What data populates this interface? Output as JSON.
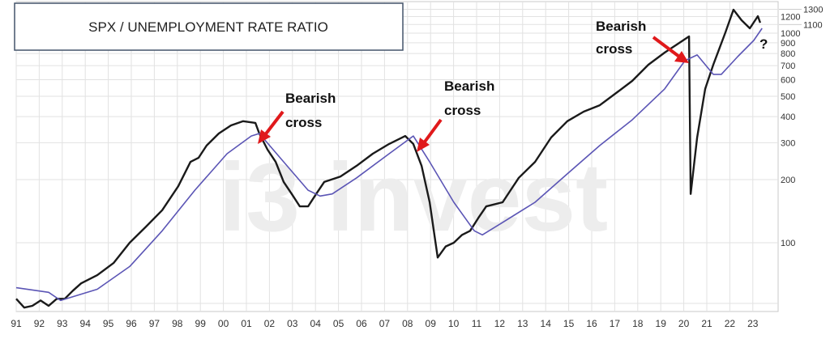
{
  "chart_data": {
    "type": "line",
    "title": "SPX / UNEMPLOYMENT RATE RATIO",
    "xlabel": "",
    "ylabel": "",
    "y_scale": "log",
    "ylim": [
      47,
      1400
    ],
    "xlim": [
      1991,
      2024.1
    ],
    "grid": true,
    "y_axis_side": "right",
    "x_tick_labels": [
      "91",
      "92",
      "93",
      "94",
      "95",
      "96",
      "97",
      "98",
      "99",
      "00",
      "01",
      "02",
      "03",
      "04",
      "05",
      "06",
      "07",
      "08",
      "09",
      "10",
      "11",
      "12",
      "13",
      "14",
      "15",
      "16",
      "17",
      "18",
      "19",
      "20",
      "21",
      "22",
      "23"
    ],
    "y_ticks": [
      100,
      200,
      300,
      400,
      500,
      600,
      700,
      800,
      900,
      1000,
      1100,
      1200,
      1300
    ],
    "series": [
      {
        "color": "#1a1a1a",
        "points": [
          [
            1991.0,
            54
          ],
          [
            1991.35,
            49
          ],
          [
            1991.7,
            50
          ],
          [
            1992.06,
            53
          ],
          [
            1992.41,
            50
          ],
          [
            1992.76,
            54
          ],
          [
            1993.11,
            54
          ],
          [
            1993.46,
            59
          ],
          [
            1993.82,
            64
          ],
          [
            1994.52,
            70
          ],
          [
            1995.23,
            80
          ],
          [
            1995.93,
            100
          ],
          [
            1996.63,
            119
          ],
          [
            1997.34,
            143
          ],
          [
            1998.04,
            186
          ],
          [
            1998.57,
            243
          ],
          [
            1998.92,
            254
          ],
          [
            1999.27,
            291
          ],
          [
            1999.8,
            332
          ],
          [
            2000.33,
            363
          ],
          [
            2000.86,
            380
          ],
          [
            2001.39,
            373
          ],
          [
            2001.56,
            332
          ],
          [
            2001.92,
            278
          ],
          [
            2002.27,
            243
          ],
          [
            2002.62,
            195
          ],
          [
            2002.97,
            171
          ],
          [
            2003.32,
            149
          ],
          [
            2003.68,
            149
          ],
          [
            2004.03,
            171
          ],
          [
            2004.38,
            195
          ],
          [
            2005.08,
            207
          ],
          [
            2005.79,
            233
          ],
          [
            2006.49,
            266
          ],
          [
            2007.2,
            296
          ],
          [
            2007.9,
            323
          ],
          [
            2008.25,
            296
          ],
          [
            2008.61,
            233
          ],
          [
            2008.96,
            156
          ],
          [
            2009.31,
            85
          ],
          [
            2009.66,
            96
          ],
          [
            2010.01,
            100
          ],
          [
            2010.37,
            109
          ],
          [
            2010.72,
            114
          ],
          [
            2011.07,
            131
          ],
          [
            2011.42,
            149
          ],
          [
            2012.13,
            156
          ],
          [
            2012.83,
            204
          ],
          [
            2013.54,
            243
          ],
          [
            2014.24,
            318
          ],
          [
            2014.94,
            380
          ],
          [
            2015.65,
            422
          ],
          [
            2016.35,
            453
          ],
          [
            2017.06,
            518
          ],
          [
            2017.76,
            592
          ],
          [
            2018.46,
            707
          ],
          [
            2019.17,
            808
          ],
          [
            2019.7,
            883
          ],
          [
            2020.23,
            965
          ],
          [
            2020.3,
            171
          ],
          [
            2020.58,
            318
          ],
          [
            2020.93,
            542
          ],
          [
            2021.28,
            707
          ],
          [
            2021.81,
            1009
          ],
          [
            2022.16,
            1294
          ],
          [
            2022.51,
            1153
          ],
          [
            2022.87,
            1055
          ],
          [
            2023.22,
            1205
          ],
          [
            2023.32,
            1122
          ]
        ]
      },
      {
        "color": "#5b55b5",
        "points": [
          [
            1991.0,
            61
          ],
          [
            1992.41,
            58
          ],
          [
            1992.93,
            53
          ],
          [
            1994.52,
            60
          ],
          [
            1995.93,
            77
          ],
          [
            1997.34,
            114
          ],
          [
            1998.76,
            178
          ],
          [
            2000.16,
            266
          ],
          [
            2001.21,
            323
          ],
          [
            2001.56,
            332
          ],
          [
            2002.62,
            243
          ],
          [
            2003.68,
            178
          ],
          [
            2004.2,
            167
          ],
          [
            2004.73,
            171
          ],
          [
            2005.79,
            204
          ],
          [
            2007.2,
            266
          ],
          [
            2008.25,
            323
          ],
          [
            2008.96,
            243
          ],
          [
            2010.01,
            156
          ],
          [
            2010.9,
            114
          ],
          [
            2011.25,
            109
          ],
          [
            2012.13,
            125
          ],
          [
            2013.54,
            156
          ],
          [
            2014.94,
            213
          ],
          [
            2016.35,
            291
          ],
          [
            2017.76,
            386
          ],
          [
            2019.17,
            542
          ],
          [
            2020.05,
            739
          ],
          [
            2020.58,
            787
          ],
          [
            2021.28,
            636
          ],
          [
            2021.63,
            636
          ],
          [
            2022.34,
            773
          ],
          [
            2023.04,
            923
          ],
          [
            2023.4,
            1055
          ]
        ]
      }
    ],
    "annotations": [
      {
        "text_line1": "Bearish",
        "text_line2": "cross",
        "arrow_color": "#e0191b",
        "target": [
          2001.3,
          318
        ]
      },
      {
        "text_line1": "Bearish",
        "text_line2": "cross",
        "arrow_color": "#e0191b",
        "target": [
          2008.2,
          296
        ]
      },
      {
        "text_line1": "Bearish",
        "text_line2": "cross",
        "arrow_color": "#e0191b",
        "target": [
          2020.0,
          739
        ]
      },
      {
        "text": "?"
      }
    ],
    "watermark": "i3 invest"
  }
}
